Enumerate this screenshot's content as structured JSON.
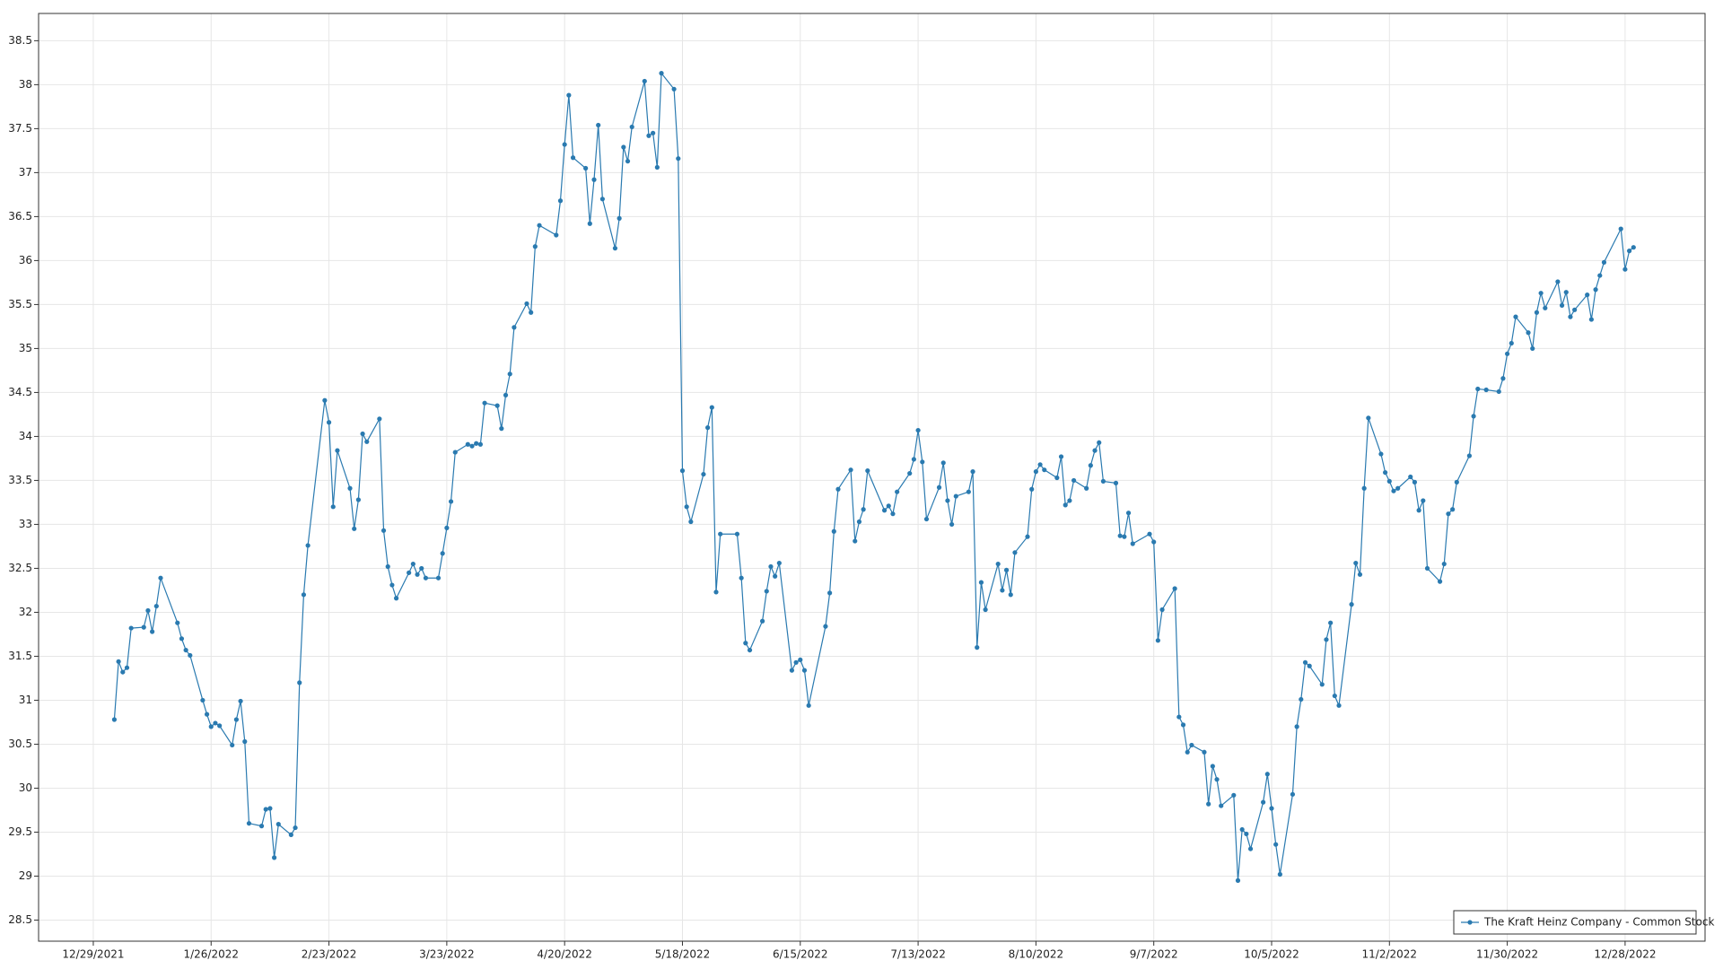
{
  "chart_data": {
    "type": "line",
    "x": [
      "2022-01-03",
      "2022-01-04",
      "2022-01-05",
      "2022-01-06",
      "2022-01-07",
      "2022-01-10",
      "2022-01-11",
      "2022-01-12",
      "2022-01-13",
      "2022-01-14",
      "2022-01-18",
      "2022-01-19",
      "2022-01-20",
      "2022-01-21",
      "2022-01-24",
      "2022-01-25",
      "2022-01-26",
      "2022-01-27",
      "2022-01-28",
      "2022-01-31",
      "2022-02-01",
      "2022-02-02",
      "2022-02-03",
      "2022-02-04",
      "2022-02-07",
      "2022-02-08",
      "2022-02-09",
      "2022-02-10",
      "2022-02-11",
      "2022-02-14",
      "2022-02-15",
      "2022-02-16",
      "2022-02-17",
      "2022-02-18",
      "2022-02-22",
      "2022-02-23",
      "2022-02-24",
      "2022-02-25",
      "2022-02-28",
      "2022-03-01",
      "2022-03-02",
      "2022-03-03",
      "2022-03-04",
      "2022-03-07",
      "2022-03-08",
      "2022-03-09",
      "2022-03-10",
      "2022-03-11",
      "2022-03-14",
      "2022-03-15",
      "2022-03-16",
      "2022-03-17",
      "2022-03-18",
      "2022-03-21",
      "2022-03-22",
      "2022-03-23",
      "2022-03-24",
      "2022-03-25",
      "2022-03-28",
      "2022-03-29",
      "2022-03-30",
      "2022-03-31",
      "2022-04-01",
      "2022-04-04",
      "2022-04-05",
      "2022-04-06",
      "2022-04-07",
      "2022-04-08",
      "2022-04-11",
      "2022-04-12",
      "2022-04-13",
      "2022-04-14",
      "2022-04-18",
      "2022-04-19",
      "2022-04-20",
      "2022-04-21",
      "2022-04-22",
      "2022-04-25",
      "2022-04-26",
      "2022-04-27",
      "2022-04-28",
      "2022-04-29",
      "2022-05-02",
      "2022-05-03",
      "2022-05-04",
      "2022-05-05",
      "2022-05-06",
      "2022-05-09",
      "2022-05-10",
      "2022-05-11",
      "2022-05-12",
      "2022-05-13",
      "2022-05-16",
      "2022-05-17",
      "2022-05-18",
      "2022-05-19",
      "2022-05-20",
      "2022-05-23",
      "2022-05-24",
      "2022-05-25",
      "2022-05-26",
      "2022-05-27",
      "2022-05-31",
      "2022-06-01",
      "2022-06-02",
      "2022-06-03",
      "2022-06-06",
      "2022-06-07",
      "2022-06-08",
      "2022-06-09",
      "2022-06-10",
      "2022-06-13",
      "2022-06-14",
      "2022-06-15",
      "2022-06-16",
      "2022-06-17",
      "2022-06-21",
      "2022-06-22",
      "2022-06-23",
      "2022-06-24",
      "2022-06-27",
      "2022-06-28",
      "2022-06-29",
      "2022-06-30",
      "2022-07-01",
      "2022-07-05",
      "2022-07-06",
      "2022-07-07",
      "2022-07-08",
      "2022-07-11",
      "2022-07-12",
      "2022-07-13",
      "2022-07-14",
      "2022-07-15",
      "2022-07-18",
      "2022-07-19",
      "2022-07-20",
      "2022-07-21",
      "2022-07-22",
      "2022-07-25",
      "2022-07-26",
      "2022-07-27",
      "2022-07-28",
      "2022-07-29",
      "2022-08-01",
      "2022-08-02",
      "2022-08-03",
      "2022-08-04",
      "2022-08-05",
      "2022-08-08",
      "2022-08-09",
      "2022-08-10",
      "2022-08-11",
      "2022-08-12",
      "2022-08-15",
      "2022-08-16",
      "2022-08-17",
      "2022-08-18",
      "2022-08-19",
      "2022-08-22",
      "2022-08-23",
      "2022-08-24",
      "2022-08-25",
      "2022-08-26",
      "2022-08-29",
      "2022-08-30",
      "2022-08-31",
      "2022-09-01",
      "2022-09-02",
      "2022-09-06",
      "2022-09-07",
      "2022-09-08",
      "2022-09-09",
      "2022-09-12",
      "2022-09-13",
      "2022-09-14",
      "2022-09-15",
      "2022-09-16",
      "2022-09-19",
      "2022-09-20",
      "2022-09-21",
      "2022-09-22",
      "2022-09-23",
      "2022-09-26",
      "2022-09-27",
      "2022-09-28",
      "2022-09-29",
      "2022-09-30",
      "2022-10-03",
      "2022-10-04",
      "2022-10-05",
      "2022-10-06",
      "2022-10-07",
      "2022-10-10",
      "2022-10-11",
      "2022-10-12",
      "2022-10-13",
      "2022-10-14",
      "2022-10-17",
      "2022-10-18",
      "2022-10-19",
      "2022-10-20",
      "2022-10-21",
      "2022-10-24",
      "2022-10-25",
      "2022-10-26",
      "2022-10-27",
      "2022-10-28",
      "2022-10-31",
      "2022-11-01",
      "2022-11-02",
      "2022-11-03",
      "2022-11-04",
      "2022-11-07",
      "2022-11-08",
      "2022-11-09",
      "2022-11-10",
      "2022-11-11",
      "2022-11-14",
      "2022-11-15",
      "2022-11-16",
      "2022-11-17",
      "2022-11-18",
      "2022-11-21",
      "2022-11-22",
      "2022-11-23",
      "2022-11-25",
      "2022-11-28",
      "2022-11-29",
      "2022-11-30",
      "2022-12-01",
      "2022-12-02",
      "2022-12-05",
      "2022-12-06",
      "2022-12-07",
      "2022-12-08",
      "2022-12-09",
      "2022-12-12",
      "2022-12-13",
      "2022-12-14",
      "2022-12-15",
      "2022-12-16",
      "2022-12-19",
      "2022-12-20",
      "2022-12-21",
      "2022-12-22",
      "2022-12-23",
      "2022-12-27",
      "2022-12-28",
      "2022-12-29",
      "2022-12-30"
    ],
    "series": [
      {
        "name": "The Kraft Heinz Company - Common Stock",
        "color": "#2a7ab0",
        "values": [
          30.78,
          31.44,
          31.32,
          31.37,
          31.82,
          31.83,
          32.02,
          31.78,
          32.07,
          32.39,
          31.88,
          31.7,
          31.57,
          31.51,
          31.0,
          30.84,
          30.7,
          30.74,
          30.71,
          30.49,
          30.78,
          30.99,
          30.53,
          29.6,
          29.57,
          29.76,
          29.77,
          29.21,
          29.59,
          29.47,
          29.55,
          31.2,
          32.2,
          32.76,
          34.41,
          34.16,
          33.2,
          33.84,
          33.41,
          32.95,
          33.28,
          34.03,
          33.94,
          34.2,
          32.93,
          32.52,
          32.31,
          32.16,
          32.45,
          32.55,
          32.43,
          32.5,
          32.39,
          32.39,
          32.67,
          32.96,
          33.26,
          33.82,
          33.91,
          33.89,
          33.92,
          33.91,
          34.38,
          34.35,
          34.09,
          34.47,
          34.71,
          35.24,
          35.51,
          35.41,
          36.16,
          36.4,
          36.29,
          36.68,
          37.32,
          37.88,
          37.17,
          37.05,
          36.42,
          36.92,
          37.54,
          36.7,
          36.14,
          36.48,
          37.29,
          37.13,
          37.52,
          38.04,
          37.42,
          37.45,
          37.06,
          38.13,
          37.95,
          37.16,
          33.61,
          33.2,
          33.03,
          33.57,
          34.1,
          34.33,
          32.23,
          32.89,
          32.89,
          32.39,
          31.65,
          31.57,
          31.9,
          32.24,
          32.52,
          32.41,
          32.56,
          31.34,
          31.43,
          31.46,
          31.34,
          30.94,
          31.84,
          32.22,
          32.92,
          33.4,
          33.62,
          32.81,
          33.03,
          33.17,
          33.61,
          33.16,
          33.21,
          33.12,
          33.37,
          33.58,
          33.74,
          34.07,
          33.71,
          33.06,
          33.42,
          33.7,
          33.27,
          33.0,
          33.32,
          33.37,
          33.6,
          31.6,
          32.34,
          32.03,
          32.55,
          32.25,
          32.48,
          32.2,
          32.68,
          32.86,
          33.4,
          33.6,
          33.68,
          33.62,
          33.53,
          33.77,
          33.22,
          33.27,
          33.5,
          33.41,
          33.67,
          33.84,
          33.93,
          33.49,
          33.47,
          32.87,
          32.86,
          33.13,
          32.78,
          32.89,
          32.8,
          31.68,
          32.03,
          32.27,
          30.81,
          30.72,
          30.41,
          30.49,
          30.41,
          29.82,
          30.25,
          30.1,
          29.8,
          29.92,
          28.95,
          29.53,
          29.48,
          29.31,
          29.84,
          30.16,
          29.77,
          29.36,
          29.02,
          29.93,
          30.7,
          31.01,
          31.43,
          31.39,
          31.18,
          31.69,
          31.88,
          31.05,
          30.94,
          32.09,
          32.56,
          32.43,
          33.41,
          34.21,
          33.8,
          33.59,
          33.49,
          33.38,
          33.41,
          33.54,
          33.48,
          33.16,
          33.27,
          32.5,
          32.35,
          32.55,
          33.12,
          33.17,
          33.48,
          33.78,
          34.23,
          34.54,
          34.53,
          34.51,
          34.66,
          34.94,
          35.06,
          35.36,
          35.18,
          35.0,
          35.41,
          35.63,
          35.46,
          35.76,
          35.49,
          35.64,
          35.36,
          35.44,
          35.61,
          35.33,
          35.67,
          35.83,
          35.98,
          36.36,
          35.9,
          36.11,
          36.15
        ]
      }
    ],
    "xlim": [
      "2021-12-16",
      "2023-01-16"
    ],
    "xticks": [
      {
        "value": "2021-12-29",
        "label": "12/29/2021"
      },
      {
        "value": "2022-01-26",
        "label": "1/26/2022"
      },
      {
        "value": "2022-02-23",
        "label": "2/23/2022"
      },
      {
        "value": "2022-03-23",
        "label": "3/23/2022"
      },
      {
        "value": "2022-04-20",
        "label": "4/20/2022"
      },
      {
        "value": "2022-05-18",
        "label": "5/18/2022"
      },
      {
        "value": "2022-06-15",
        "label": "6/15/2022"
      },
      {
        "value": "2022-07-13",
        "label": "7/13/2022"
      },
      {
        "value": "2022-08-10",
        "label": "8/10/2022"
      },
      {
        "value": "2022-09-07",
        "label": "9/7/2022"
      },
      {
        "value": "2022-10-05",
        "label": "10/5/2022"
      },
      {
        "value": "2022-11-02",
        "label": "11/2/2022"
      },
      {
        "value": "2022-11-30",
        "label": "11/30/2022"
      },
      {
        "value": "2022-12-28",
        "label": "12/28/2022"
      }
    ],
    "ylim": [
      28.26,
      38.81
    ],
    "yticks": [
      28.5,
      29,
      29.5,
      30,
      30.5,
      31,
      31.5,
      32,
      32.5,
      33,
      33.5,
      34,
      34.5,
      35,
      35.5,
      36,
      36.5,
      37,
      37.5,
      38,
      38.5
    ],
    "grid": true,
    "legend": "lower right"
  }
}
